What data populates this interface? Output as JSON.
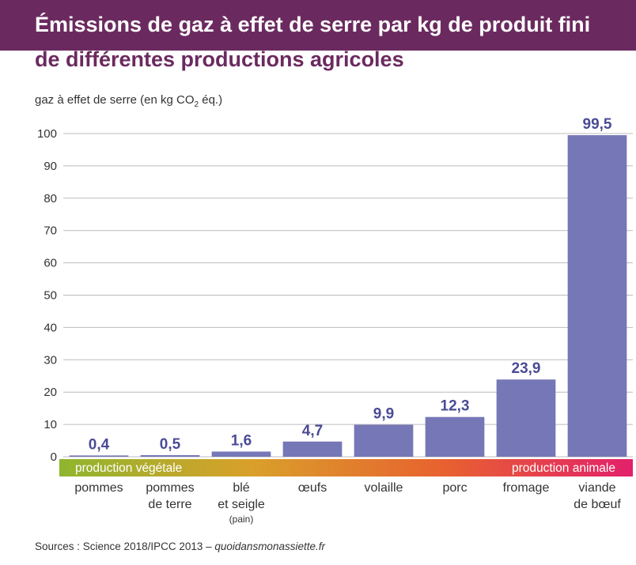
{
  "title_line1": "Émissions de gaz à effet de serre par kg de produit fini",
  "title_line2": "de différentes productions agricoles",
  "y_axis_title_prefix": "gaz à effet de serre (en kg CO",
  "y_axis_title_sub": "2",
  "y_axis_title_suffix": " éq.)",
  "source_prefix": "Sources : Science 2018/IPCC 2013 – ",
  "source_site": "quoidansmonassiette.fr",
  "band": {
    "left_label": "production végétale",
    "right_label": "production animale",
    "gradient_colors": [
      "#8fb52e",
      "#d9a02a",
      "#e8622f",
      "#e3206b"
    ]
  },
  "colors": {
    "title_band": "#6b2a5f",
    "bar": "#7677b6",
    "value_label": "#4a4b96",
    "grid": "#bbbbbb"
  },
  "chart_data": {
    "type": "bar",
    "title": "Émissions de gaz à effet de serre par kg de produit fini de différentes productions agricoles",
    "ylabel": "gaz à effet de serre (en kg CO2 éq.)",
    "ylim": [
      0,
      100
    ],
    "yticks": [
      0,
      10,
      20,
      30,
      40,
      50,
      60,
      70,
      80,
      90,
      100
    ],
    "grid": true,
    "categories": [
      [
        "pommes"
      ],
      [
        "pommes",
        "de terre"
      ],
      [
        "blé",
        "et seigle",
        "(pain)"
      ],
      [
        "œufs"
      ],
      [
        "volaille"
      ],
      [
        "porc"
      ],
      [
        "fromage"
      ],
      [
        "viande",
        "de bœuf"
      ]
    ],
    "values": [
      0.4,
      0.5,
      1.6,
      4.7,
      9.9,
      12.3,
      23.9,
      99.5
    ],
    "value_labels": [
      "0,4",
      "0,5",
      "1,6",
      "4,7",
      "9,9",
      "12,3",
      "23,9",
      "99,5"
    ]
  }
}
